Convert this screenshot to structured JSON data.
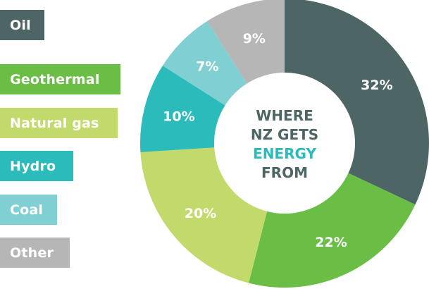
{
  "colors": {
    "oil": "#4d6565",
    "geothermal": "#6abd45",
    "natural_gas": "#c2d96b",
    "hydro": "#2bbbbb",
    "coal": "#7fcfd3",
    "other": "#b6b6b6",
    "center_text": "#4d6565",
    "center_highlight": "#2bbbbb"
  },
  "legend": [
    {
      "label": "Oil",
      "color": "#4d6565"
    },
    {
      "label": "Geothermal",
      "color": "#6abd45"
    },
    {
      "label": "Natural gas",
      "color": "#c2d96b"
    },
    {
      "label": "Hydro",
      "color": "#2bbbbb"
    },
    {
      "label": "Coal",
      "color": "#7fcfd3"
    },
    {
      "label": "Other",
      "color": "#b6b6b6"
    }
  ],
  "chart_data": {
    "type": "pie",
    "title": "WHERE NZ GETS ENERGY FROM",
    "title_lines": [
      "WHERE",
      "NZ GETS",
      "ENERGY",
      "FROM"
    ],
    "categories": [
      "Oil",
      "Geothermal",
      "Natural gas",
      "Hydro",
      "Coal",
      "Other"
    ],
    "values": [
      32,
      22,
      20,
      10,
      7,
      9
    ],
    "value_labels": [
      "32%",
      "22%",
      "20%",
      "10%",
      "7%",
      "9%"
    ],
    "colors": [
      "#4d6565",
      "#6abd45",
      "#c2d96b",
      "#2bbbbb",
      "#7fcfd3",
      "#b6b6b6"
    ],
    "legend_position": "left"
  }
}
